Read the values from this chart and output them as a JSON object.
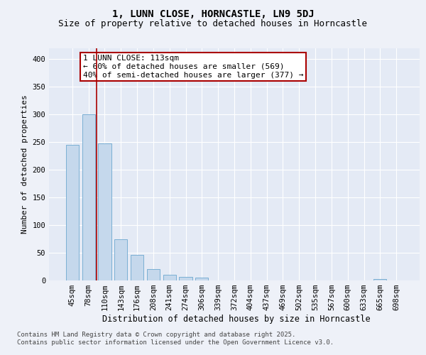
{
  "title_line1": "1, LUNN CLOSE, HORNCASTLE, LN9 5DJ",
  "title_line2": "Size of property relative to detached houses in Horncastle",
  "xlabel": "Distribution of detached houses by size in Horncastle",
  "ylabel": "Number of detached properties",
  "categories": [
    "45sqm",
    "78sqm",
    "110sqm",
    "143sqm",
    "176sqm",
    "208sqm",
    "241sqm",
    "274sqm",
    "306sqm",
    "339sqm",
    "372sqm",
    "404sqm",
    "437sqm",
    "469sqm",
    "502sqm",
    "535sqm",
    "567sqm",
    "600sqm",
    "633sqm",
    "665sqm",
    "698sqm"
  ],
  "values": [
    245,
    300,
    248,
    75,
    46,
    20,
    10,
    7,
    5,
    0,
    0,
    0,
    0,
    0,
    0,
    0,
    0,
    0,
    0,
    3,
    0
  ],
  "bar_color": "#c5d8ec",
  "bar_edge_color": "#7aafd4",
  "vline_color": "#aa0000",
  "annotation_text": "1 LUNN CLOSE: 113sqm\n← 60% of detached houses are smaller (569)\n40% of semi-detached houses are larger (377) →",
  "annotation_box_color": "#ffffff",
  "annotation_box_edge_color": "#aa0000",
  "ylim": [
    0,
    420
  ],
  "yticks": [
    0,
    50,
    100,
    150,
    200,
    250,
    300,
    350,
    400
  ],
  "background_color": "#eef1f8",
  "plot_background_color": "#e4eaf5",
  "grid_color": "#ffffff",
  "footnote": "Contains HM Land Registry data © Crown copyright and database right 2025.\nContains public sector information licensed under the Open Government Licence v3.0.",
  "title_fontsize": 10,
  "subtitle_fontsize": 9,
  "xlabel_fontsize": 8.5,
  "ylabel_fontsize": 8,
  "tick_fontsize": 7.5,
  "annot_fontsize": 8,
  "footnote_fontsize": 6.5,
  "vline_x": 1.5
}
